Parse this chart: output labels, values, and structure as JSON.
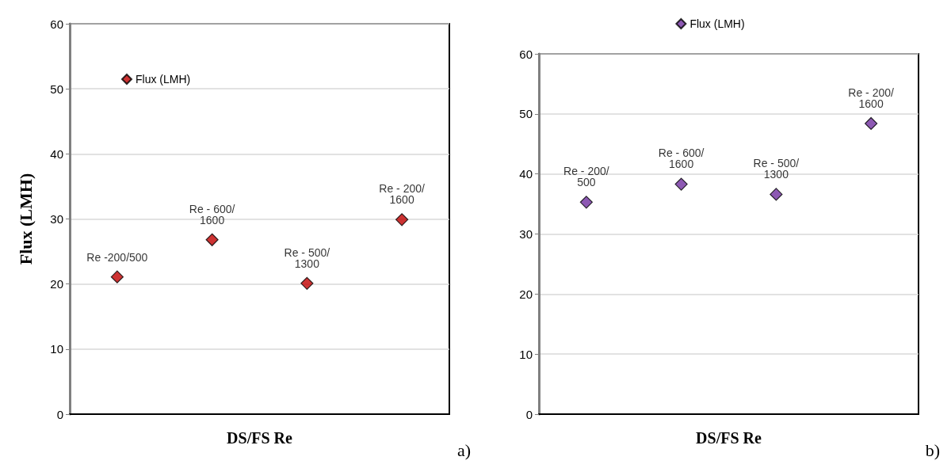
{
  "chart_data": [
    {
      "type": "scatter",
      "xlabel": "DS/FS Re",
      "ylabel": "Flux (LMH)",
      "categories": [
        null,
        null,
        null,
        null
      ],
      "ylim": [
        0,
        60
      ],
      "yticks": [
        0,
        10,
        20,
        30,
        40,
        50,
        60
      ],
      "grid": "y",
      "legend": "top left",
      "marker": "diamond",
      "annotations": [
        "a)"
      ],
      "series": [
        {
          "name": "Flux (LMH)",
          "color": "#c00000",
          "values": [
            21.1,
            26.8,
            20.1,
            29.9
          ],
          "value_labels": [
            "Re -200/500",
            "Re - 600/1600",
            "Re - 500/1300",
            "Re - 200/1600"
          ]
        }
      ]
    },
    {
      "type": "scatter",
      "xlabel": "DS/FS Re",
      "categories": [
        null,
        null,
        null,
        null
      ],
      "ylim": [
        0,
        60
      ],
      "yticks": [
        0,
        10,
        20,
        30,
        40,
        50,
        60
      ],
      "grid": "y",
      "legend": "top",
      "marker": "diamond",
      "annotations": [
        "b)"
      ],
      "series": [
        {
          "name": "Flux (LMH)",
          "color": "#7030a0",
          "values": [
            35.3,
            38.3,
            36.6,
            48.4
          ],
          "value_labels": [
            "Re - 200/500",
            "Re - 600/1600",
            "Re - 500/1300",
            "Re - 200/1600"
          ]
        }
      ]
    }
  ]
}
